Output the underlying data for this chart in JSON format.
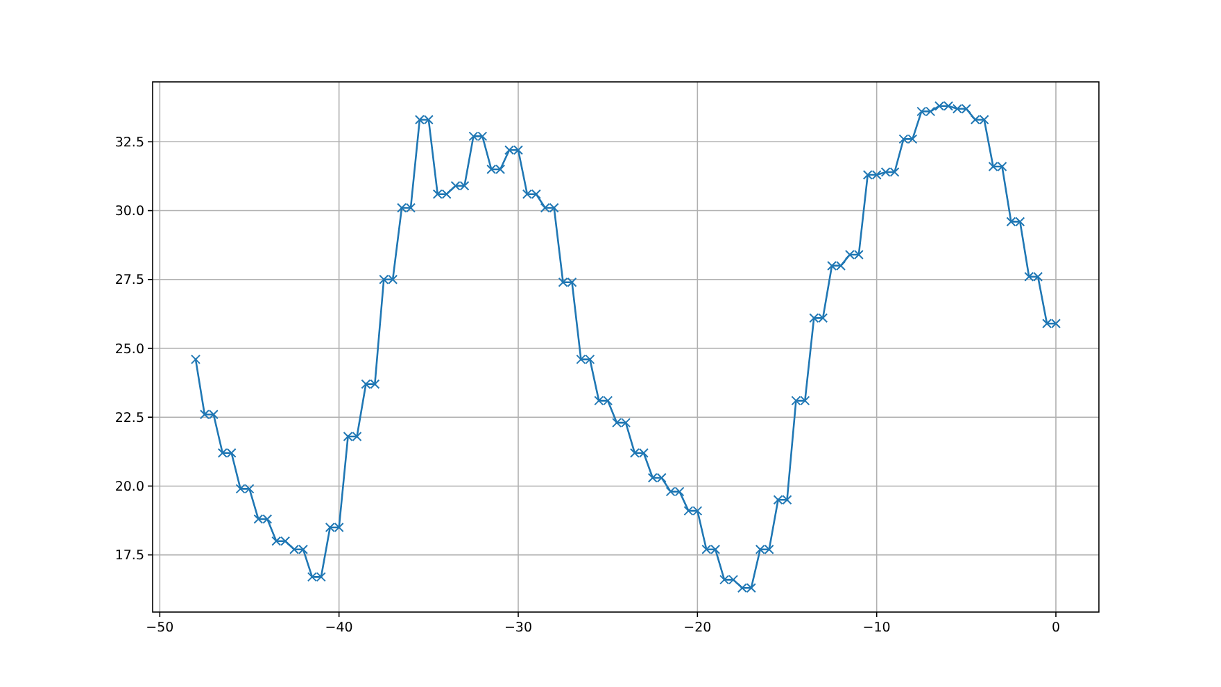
{
  "chart_data": {
    "type": "line",
    "x": [
      -48,
      -47.5,
      -47,
      -46.5,
      -46,
      -45.5,
      -45,
      -44.5,
      -44,
      -43.5,
      -43,
      -42.5,
      -42,
      -41.5,
      -41,
      -40.5,
      -40,
      -39.5,
      -39,
      -38.5,
      -38,
      -37.5,
      -37,
      -36.5,
      -36,
      -35.5,
      -35,
      -34.5,
      -34,
      -33.5,
      -33,
      -32.5,
      -32,
      -31.5,
      -31,
      -30.5,
      -30,
      -29.5,
      -29,
      -28.5,
      -28,
      -27.5,
      -27,
      -26.5,
      -26,
      -25.5,
      -25,
      -24.5,
      -24,
      -23.5,
      -23,
      -22.5,
      -22,
      -21.5,
      -21,
      -20.5,
      -20,
      -19.5,
      -19,
      -18.5,
      -18,
      -17.5,
      -17,
      -16.5,
      -16,
      -15.5,
      -15,
      -14.5,
      -14,
      -13.5,
      -13,
      -12.5,
      -12,
      -11.5,
      -11,
      -10.5,
      -10,
      -9.5,
      -9,
      -8.5,
      -8,
      -7.5,
      -7,
      -6.5,
      -6,
      -5.5,
      -5,
      -4.5,
      -4,
      -3.5,
      -3,
      -2.5,
      -2,
      -1.5,
      -1,
      -0.5,
      0
    ],
    "series": [
      {
        "color": "#1f77b4",
        "values": [
          24.6,
          22.6,
          22.6,
          21.2,
          21.2,
          19.9,
          19.9,
          18.8,
          18.8,
          18.0,
          18.0,
          17.7,
          17.7,
          16.7,
          16.7,
          18.5,
          18.5,
          21.8,
          21.8,
          23.7,
          23.7,
          27.5,
          27.5,
          30.1,
          30.1,
          33.3,
          33.3,
          30.6,
          30.6,
          30.9,
          30.9,
          32.7,
          32.7,
          31.5,
          31.5,
          32.2,
          32.2,
          30.6,
          30.6,
          30.1,
          30.1,
          27.4,
          27.4,
          24.6,
          24.6,
          23.1,
          23.1,
          22.3,
          22.3,
          21.2,
          21.2,
          20.3,
          20.3,
          19.8,
          19.8,
          19.1,
          19.1,
          17.7,
          17.7,
          16.6,
          16.6,
          16.3,
          16.3,
          17.7,
          17.7,
          19.5,
          19.5,
          23.1,
          23.1,
          26.1,
          26.1,
          28.0,
          28.0,
          28.4,
          28.4,
          31.3,
          31.3,
          31.4,
          31.4,
          32.6,
          32.6,
          33.6,
          33.6,
          33.8,
          33.8,
          33.7,
          33.7,
          33.3,
          33.3,
          31.6,
          31.6,
          29.6,
          29.6,
          27.6,
          27.6,
          25.9,
          25.9
        ]
      }
    ],
    "xlim": [
      -50.4,
      2.4
    ],
    "xticks": [
      {
        "value": -50,
        "label": "−50"
      },
      {
        "value": -40,
        "label": "−40"
      },
      {
        "value": -30,
        "label": "−30"
      },
      {
        "value": -20,
        "label": "−20"
      },
      {
        "value": -10,
        "label": "−10"
      },
      0
    ],
    "ylim": [
      15.425,
      34.675
    ],
    "yticks": [
      17.5,
      {
        "value": 20,
        "label": "20.0"
      },
      22.5,
      {
        "value": 25,
        "label": "25.0"
      },
      27.5,
      {
        "value": 30,
        "label": "30.0"
      },
      32.5
    ],
    "grid": true,
    "marker": "cross",
    "line_style": "solid"
  }
}
